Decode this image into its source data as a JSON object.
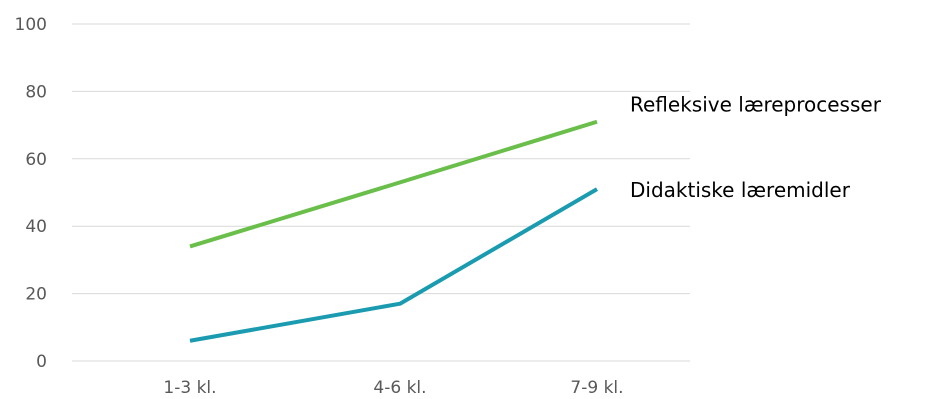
{
  "chart_data": {
    "type": "line",
    "categories": [
      "1-3 kl.",
      "4-6 kl.",
      "7-9 kl."
    ],
    "ylim": [
      0,
      100
    ],
    "yticks": [
      0,
      20,
      40,
      60,
      80,
      100
    ],
    "grid": true,
    "legend": "direct-labels-right",
    "title": "",
    "xlabel": "",
    "ylabel": "",
    "series": [
      {
        "name": "Refleksive læreprocesser",
        "values": [
          34,
          53,
          71
        ],
        "color": "#6abf4b"
      },
      {
        "name": "Didaktiske læremidler",
        "values": [
          6,
          17,
          51
        ],
        "color": "#1a9bb0"
      }
    ]
  }
}
